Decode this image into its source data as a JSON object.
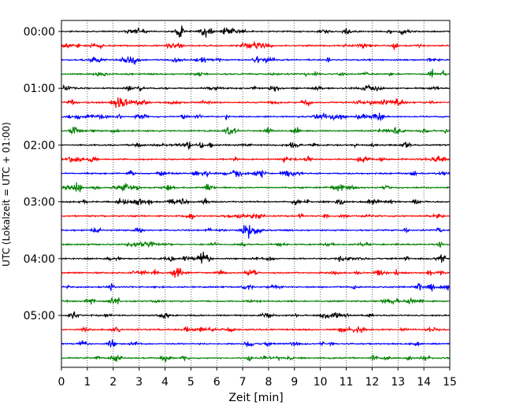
{
  "chart_data": {
    "type": "line",
    "title": "",
    "xlabel": "Zeit  [min]",
    "ylabel": "UTC (Lokalzeit = UTC + 01:00)",
    "xlim": [
      0,
      15
    ],
    "x_ticks": [
      "0",
      "1",
      "2",
      "3",
      "4",
      "5",
      "6",
      "7",
      "8",
      "9",
      "10",
      "11",
      "12",
      "13",
      "14",
      "15"
    ],
    "y_ticks": [
      "00:00",
      "01:00",
      "02:00",
      "03:00",
      "04:00",
      "05:00"
    ],
    "minutes_per_trace": 15,
    "trace_count": 24,
    "trace_colors": [
      "#000000",
      "#ff0000",
      "#0000ff",
      "#008000"
    ],
    "grid": "vertical-dotted",
    "series": [
      {
        "start": "00:00",
        "color": "#000000"
      },
      {
        "start": "00:15",
        "color": "#ff0000"
      },
      {
        "start": "00:30",
        "color": "#0000ff"
      },
      {
        "start": "00:45",
        "color": "#008000"
      },
      {
        "start": "01:00",
        "color": "#000000"
      },
      {
        "start": "01:15",
        "color": "#ff0000"
      },
      {
        "start": "01:30",
        "color": "#0000ff"
      },
      {
        "start": "01:45",
        "color": "#008000"
      },
      {
        "start": "02:00",
        "color": "#000000"
      },
      {
        "start": "02:15",
        "color": "#ff0000"
      },
      {
        "start": "02:30",
        "color": "#0000ff"
      },
      {
        "start": "02:45",
        "color": "#008000"
      },
      {
        "start": "03:00",
        "color": "#000000"
      },
      {
        "start": "03:15",
        "color": "#ff0000"
      },
      {
        "start": "03:30",
        "color": "#0000ff"
      },
      {
        "start": "03:45",
        "color": "#008000"
      },
      {
        "start": "04:00",
        "color": "#000000"
      },
      {
        "start": "04:15",
        "color": "#ff0000"
      },
      {
        "start": "04:30",
        "color": "#0000ff"
      },
      {
        "start": "04:45",
        "color": "#008000"
      },
      {
        "start": "05:00",
        "color": "#000000"
      },
      {
        "start": "05:15",
        "color": "#ff0000"
      },
      {
        "start": "05:30",
        "color": "#0000ff"
      },
      {
        "start": "05:45",
        "color": "#008000"
      }
    ]
  }
}
